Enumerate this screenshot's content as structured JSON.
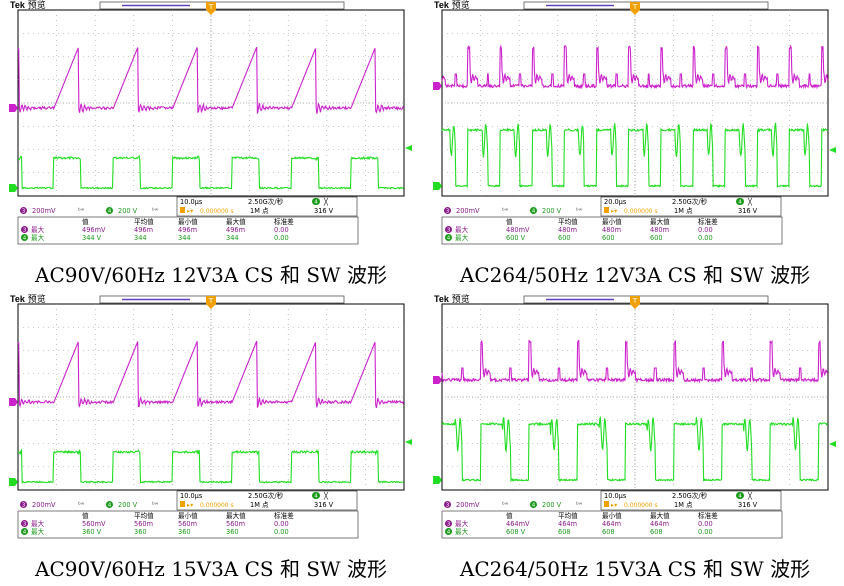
{
  "scopes": [
    {
      "id": "p1",
      "brand": "Tek",
      "mode": "预览",
      "caption": "AC90V/60Hz 12V3A CS 和 SW 波形",
      "trace_type": "low",
      "ch3_scale": "200mV",
      "ch4_scale": "200 V",
      "timebase": "10.0µs",
      "sample_rate": "2.50G次/秒",
      "trigger_pos": "0.000000 s",
      "record_length": "1M 点",
      "trigger_level": "316 V",
      "trigger_ch": "4",
      "table_headers": [
        "值",
        "平均值",
        "最小值",
        "最大值",
        "标准差"
      ],
      "rows": [
        {
          "ch": "3",
          "label": "最大",
          "values": [
            "496mV",
            "496m",
            "496m",
            "496m",
            "0.00"
          ]
        },
        {
          "ch": "4",
          "label": "最大",
          "values": [
            "344 V",
            "344",
            "344",
            "344",
            "0.00"
          ]
        }
      ]
    },
    {
      "id": "p2",
      "brand": "Tek",
      "mode": "预览",
      "caption": "AC264/50Hz 12V3A CS 和 SW 波形",
      "trace_type": "high",
      "ch3_scale": "200mV",
      "ch4_scale": "200 V",
      "timebase": "20.0µs",
      "sample_rate": "2.50G次/秒",
      "trigger_pos": "0.000000 s",
      "record_length": "1M 点",
      "trigger_level": "316 V",
      "trigger_ch": "4",
      "table_headers": [
        "值",
        "平均值",
        "最小值",
        "最大值",
        "标准差"
      ],
      "rows": [
        {
          "ch": "3",
          "label": "最大",
          "values": [
            "480mV",
            "480m",
            "480m",
            "480m",
            "0.00"
          ]
        },
        {
          "ch": "4",
          "label": "最大",
          "values": [
            "600 V",
            "600",
            "600",
            "600",
            "0.00"
          ]
        }
      ]
    },
    {
      "id": "p3",
      "brand": "Tek",
      "mode": "预览",
      "caption": "AC90V/60Hz 15V3A CS 和 SW 波形",
      "trace_type": "low",
      "ch3_scale": "200mV",
      "ch4_scale": "200 V",
      "timebase": "10.0µs",
      "sample_rate": "2.50G次/秒",
      "trigger_pos": "0.000000 s",
      "record_length": "1M 点",
      "trigger_level": "316 V",
      "trigger_ch": "4",
      "table_headers": [
        "值",
        "平均值",
        "最小值",
        "最大值",
        "标准差"
      ],
      "rows": [
        {
          "ch": "3",
          "label": "最大",
          "values": [
            "560mV",
            "560m",
            "560m",
            "560m",
            "0.00"
          ]
        },
        {
          "ch": "4",
          "label": "最大",
          "values": [
            "360 V",
            "360",
            "360",
            "360",
            "0.00"
          ]
        }
      ]
    },
    {
      "id": "p4",
      "brand": "Tek",
      "mode": "预览",
      "caption": "AC264/50Hz 15V3A CS 和 SW 波形",
      "trace_type": "high",
      "ch3_scale": "200mV",
      "ch4_scale": "200 V",
      "timebase": "10.0µs",
      "sample_rate": "2.50G次/秒",
      "trigger_pos": "0.000000 s",
      "record_length": "1M 点",
      "trigger_level": "316 V",
      "trigger_ch": "4",
      "table_headers": [
        "值",
        "平均值",
        "最小值",
        "最大值",
        "标准差"
      ],
      "rows": [
        {
          "ch": "3",
          "label": "最大",
          "values": [
            "464mV",
            "464m",
            "464m",
            "464m",
            "0.00"
          ]
        },
        {
          "ch": "4",
          "label": "最大",
          "values": [
            "608 V",
            "608",
            "608",
            "608",
            "0.00"
          ]
        }
      ]
    }
  ],
  "colors": {
    "ch3": "#cc22cc",
    "ch4": "#22dd22",
    "grid": "#9a9a9a",
    "frame": "#000000",
    "trigger": "#f0a000",
    "badge_ch3": "#8b1a8b",
    "badge_ch4": "#1a9a1a"
  }
}
